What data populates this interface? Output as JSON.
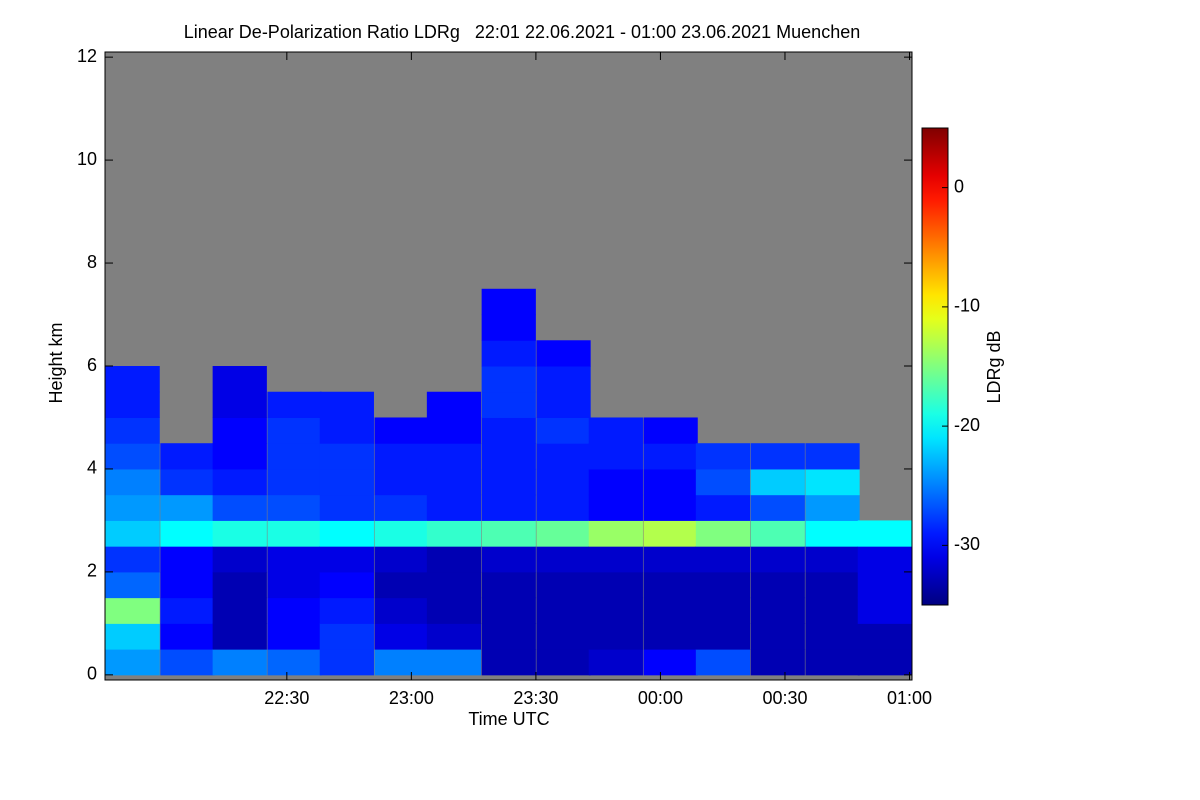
{
  "chart_data": {
    "type": "heatmap",
    "title": "Linear De-Polarization Ratio LDRg   22:01 22.06.2021 - 01:00 23.06.2021 Muenchen",
    "x_label": "Time UTC",
    "y_label": "Height km",
    "colorbar_label": "LDRg dB",
    "xlim": [
      21.77,
      25.01
    ],
    "xticks": [
      {
        "value": 22.5,
        "label": "22:30"
      },
      {
        "value": 23,
        "label": "23:00"
      },
      {
        "value": 23.5,
        "label": "23:30"
      },
      {
        "value": 24,
        "label": "00:00"
      },
      {
        "value": 24.5,
        "label": "00:30"
      },
      {
        "value": 25,
        "label": "01:00"
      }
    ],
    "ylim": [
      -0.1,
      12.1
    ],
    "yticks": [
      0,
      2,
      4,
      6,
      8,
      10,
      12
    ],
    "zlim": [
      -35,
      5
    ],
    "zticks": [
      0,
      -10,
      -20,
      -30
    ],
    "colormap": "jet",
    "missing_color": "#808080",
    "x": [
      21.88,
      22.1,
      22.31,
      22.53,
      22.74,
      22.96,
      23.17,
      23.39,
      23.61,
      23.82,
      24.04,
      24.25,
      24.47,
      24.69,
      24.9
    ],
    "y": [
      0.25,
      0.75,
      1.25,
      1.75,
      2.25,
      2.75,
      3.25,
      3.75,
      4.25,
      4.75,
      5.25,
      5.75,
      6.25,
      6.75,
      7.25,
      7.75,
      8.25
    ],
    "values": [
      [
        -24,
        -22,
        -15,
        -26,
        -28,
        -22,
        -24,
        -25,
        -27,
        -28,
        -29,
        -29,
        null,
        null,
        null,
        null,
        null
      ],
      [
        -27,
        -30,
        -29,
        -30,
        -30,
        -20,
        -24,
        -28,
        -29,
        null,
        null,
        null,
        null,
        null,
        null,
        null,
        null
      ],
      [
        -25,
        -33,
        -33,
        -33,
        -32,
        -19,
        -27,
        -29,
        -30,
        -30,
        -31,
        -31,
        null,
        null,
        null,
        null,
        null
      ],
      [
        -26,
        -30,
        -30,
        -31,
        -31,
        -19,
        -27,
        -28,
        -28,
        -28,
        -29,
        null,
        null,
        null,
        null,
        null,
        null
      ],
      [
        -28,
        -28,
        -29,
        -30,
        -31,
        -20,
        -28,
        -28,
        -28,
        -29,
        -29,
        null,
        null,
        null,
        null,
        null,
        null
      ],
      [
        -25,
        -31,
        -32,
        -33,
        -32,
        -19,
        -28,
        -29,
        -29,
        -30,
        null,
        null,
        null,
        null,
        null,
        null,
        null
      ],
      [
        -25,
        -32,
        -33,
        -33,
        -33,
        -18,
        -29,
        -29,
        -29,
        -30,
        -30,
        null,
        null,
        null,
        null,
        null,
        null
      ],
      [
        -33,
        -33,
        -33,
        -33,
        -32,
        -17,
        -29,
        -29,
        -29,
        -29,
        -28,
        -28,
        -29,
        -30,
        -30,
        null,
        null
      ],
      [
        -33,
        -33,
        -33,
        -33,
        -32,
        -16,
        -29,
        -29,
        -29,
        -28,
        -29,
        -29,
        -30,
        null,
        null,
        null,
        null
      ],
      [
        -32,
        -33,
        -33,
        -33,
        -32,
        -14,
        -30,
        -30,
        -29,
        -29,
        null,
        null,
        null,
        null,
        null,
        null,
        null
      ],
      [
        -30,
        -33,
        -33,
        -33,
        -32,
        -13,
        -30,
        -30,
        -29,
        -30,
        null,
        null,
        null,
        null,
        null,
        null,
        null
      ],
      [
        -27,
        -33,
        -33,
        -33,
        -32,
        -15,
        -29,
        -27,
        -28,
        null,
        null,
        null,
        null,
        null,
        null,
        null,
        null
      ],
      [
        -33,
        -33,
        -33,
        -33,
        -32,
        -17,
        -27,
        -22,
        -28,
        null,
        null,
        null,
        null,
        null,
        null,
        null,
        null
      ],
      [
        -33,
        -33,
        -33,
        -33,
        -32,
        -20,
        -24,
        -21,
        -28,
        null,
        null,
        null,
        null,
        null,
        null,
        null,
        null
      ],
      [
        -33,
        -33,
        -31,
        -31,
        -31,
        -20,
        null,
        null,
        null,
        null,
        null,
        null,
        null,
        null,
        null,
        null,
        null
      ]
    ]
  }
}
